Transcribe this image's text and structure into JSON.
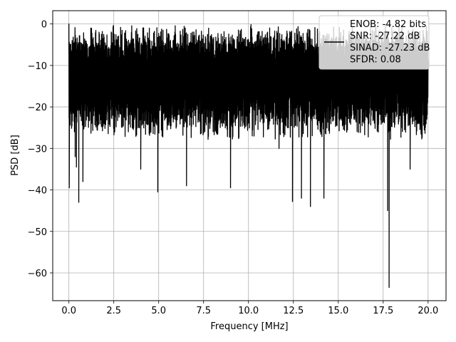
{
  "chart_data": {
    "type": "line",
    "title": "",
    "xlabel": "Frequency [MHz]",
    "ylabel": "PSD [dB]",
    "xlim": [
      -0.9,
      21.0
    ],
    "ylim": [
      -66.7,
      3.2
    ],
    "xticks": [
      0.0,
      2.5,
      5.0,
      7.5,
      10.0,
      12.5,
      15.0,
      17.5,
      20.0
    ],
    "xtick_labels": [
      "0.0",
      "2.5",
      "5.0",
      "7.5",
      "10.0",
      "12.5",
      "15.0",
      "17.5",
      "20.0"
    ],
    "yticks": [
      0,
      -10,
      -20,
      -30,
      -40,
      -50,
      -60
    ],
    "ytick_labels": [
      "0",
      "−10",
      "−20",
      "−30",
      "−40",
      "−50",
      "−60"
    ],
    "grid": true,
    "legend_position": "top-right",
    "series": [
      {
        "name": "ENOB: -4.82 bits\nSNR: -27.22 dB\nSINAD: -27.23 dB\nSFDR: 0.08",
        "legend_lines": [
          "ENOB: -4.82 bits",
          "SNR: -27.22 dB",
          "SINAD: -27.23 dB",
          "SFDR: 0.08"
        ],
        "color": "#000000",
        "x_range": [
          0.0,
          20.0
        ],
        "band_top": [
          0.0,
          -5.0
        ],
        "band_bottom": [
          -20.0,
          -28.0
        ],
        "notable_points": [
          {
            "x": 0.0,
            "y": 0.0
          },
          {
            "x": 0.02,
            "y": -39.5
          },
          {
            "x": 0.08,
            "y": -7.5
          },
          {
            "x": 0.35,
            "y": -32.0
          },
          {
            "x": 0.42,
            "y": -34.5
          },
          {
            "x": 0.55,
            "y": -43.0
          },
          {
            "x": 0.78,
            "y": -38.0
          },
          {
            "x": 4.0,
            "y": -35.0
          },
          {
            "x": 4.95,
            "y": -40.5
          },
          {
            "x": 6.55,
            "y": -39.0
          },
          {
            "x": 9.0,
            "y": -39.5
          },
          {
            "x": 11.7,
            "y": -30.0
          },
          {
            "x": 12.45,
            "y": -42.8
          },
          {
            "x": 12.95,
            "y": -42.0
          },
          {
            "x": 13.45,
            "y": -44.0
          },
          {
            "x": 14.2,
            "y": -42.0
          },
          {
            "x": 17.75,
            "y": -45.0
          },
          {
            "x": 17.83,
            "y": -63.5
          },
          {
            "x": 19.0,
            "y": -35.0
          }
        ]
      }
    ]
  }
}
